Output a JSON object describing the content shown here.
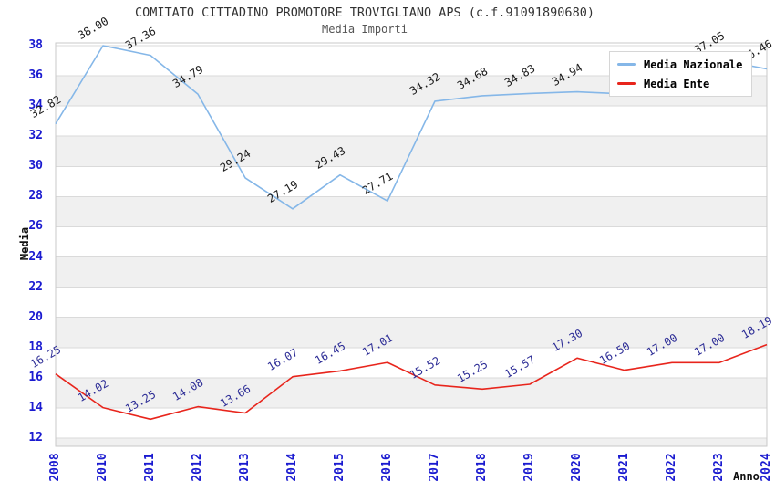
{
  "title": "COMITATO CITTADINO PROMOTORE TROVIGLIANO APS (c.f.91091890680)",
  "subtitle": "Media Importi",
  "axes": {
    "y_label": "Media",
    "x_label": "Anno",
    "y_ticks": [
      "38",
      "36",
      "34",
      "32",
      "30",
      "28",
      "26",
      "24",
      "22",
      "20",
      "18",
      "16",
      "14",
      "12"
    ],
    "x_ticks": [
      "2008",
      "2010",
      "2011",
      "2012",
      "2013",
      "2014",
      "2015",
      "2016",
      "2017",
      "2018",
      "2019",
      "2020",
      "2021",
      "2022",
      "2023",
      "2024"
    ]
  },
  "colors": {
    "background": "#ffffff",
    "band": "#f0f0f0",
    "gridline": "#dadada",
    "plot_border": "#c9c9c9",
    "tick_label": "#1a1ad0",
    "title": "#333333",
    "subtitle": "#555555",
    "blue_line": "#85b7e8",
    "red_line": "#e8251c",
    "blue_value_label": "#1a1a1a",
    "red_value_label": "#2d2d96"
  },
  "legend": {
    "position": "top-right",
    "entries": [
      {
        "label": "Media Nazionale",
        "color": "#85b7e8"
      },
      {
        "label": "Media Ente",
        "color": "#e8251c"
      }
    ]
  },
  "chart_data": {
    "type": "line",
    "title": "COMITATO CITTADINO PROMOTORE TROVIGLIANO APS (c.f.91091890680)",
    "subtitle": "Media Importi",
    "xlabel": "Anno",
    "ylabel": "Media",
    "ylim": [
      12,
      38
    ],
    "ytick_step": 2,
    "grid": true,
    "alternating_bands": true,
    "legend_position": "top-right",
    "x": [
      "2008",
      "2010",
      "2011",
      "2012",
      "2013",
      "2014",
      "2015",
      "2016",
      "2017",
      "2018",
      "2019",
      "2020",
      "2021",
      "2022",
      "2023",
      "2024"
    ],
    "series": [
      {
        "name": "Media Nazionale",
        "color": "#85b7e8",
        "label_color": "#1a1a1a",
        "values": [
          32.82,
          38.0,
          37.36,
          34.79,
          29.24,
          27.19,
          29.43,
          27.71,
          34.32,
          34.68,
          34.83,
          34.94,
          34.8,
          34.7,
          37.05,
          36.46
        ],
        "labels": [
          "32.82",
          "38.00",
          "37.36",
          "34.79",
          "29.24",
          "27.19",
          "29.43",
          "27.71",
          "34.32",
          "34.68",
          "34.83",
          "34.94",
          "",
          "",
          "37.05",
          "36.46"
        ],
        "note_hidden_labels": "2021 and 2022 value labels are hidden behind the legend box; values estimated from line position"
      },
      {
        "name": "Media Ente",
        "color": "#e8251c",
        "label_color": "#2d2d96",
        "values": [
          16.25,
          14.02,
          13.25,
          14.08,
          13.66,
          16.07,
          16.45,
          17.01,
          15.52,
          15.25,
          15.57,
          17.3,
          16.5,
          17.0,
          17.0,
          18.19
        ],
        "labels": [
          "16.25",
          "14.02",
          "13.25",
          "14.08",
          "13.66",
          "16.07",
          "16.45",
          "17.01",
          "15.52",
          "15.25",
          "15.57",
          "17.30",
          "16.50",
          "17.00",
          "17.00",
          "18.19"
        ]
      }
    ]
  }
}
